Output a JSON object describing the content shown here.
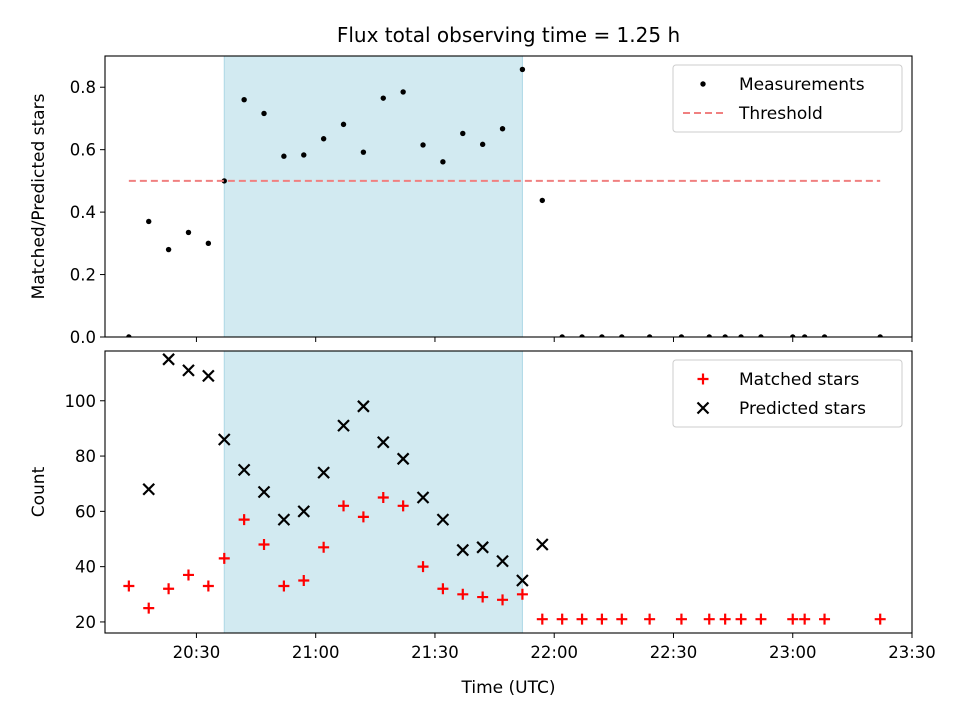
{
  "chart_data": [
    {
      "type": "scatter",
      "title": "Flux total observing time = 1.25 h",
      "xlabel": "",
      "ylabel": "Matched/Predicted stars",
      "x_axis": "time (UTC)",
      "xlim": [
        "20:07",
        "23:30"
      ],
      "ylim": [
        0,
        0.9
      ],
      "yticks": [
        "0.0",
        "0.2",
        "0.4",
        "0.6",
        "0.8"
      ],
      "highlight_span": {
        "start": "20:37",
        "end": "21:52",
        "color": "#add8e6"
      },
      "legend": {
        "placement": "top-right"
      },
      "series": [
        {
          "name": "Measurements",
          "marker": "dot",
          "color": "#000000",
          "points": [
            [
              "20:13",
              0.0
            ],
            [
              "20:18",
              0.37
            ],
            [
              "20:23",
              0.28
            ],
            [
              "20:28",
              0.335
            ],
            [
              "20:33",
              0.3
            ],
            [
              "20:37",
              0.5
            ],
            [
              "20:42",
              0.76
            ],
            [
              "20:47",
              0.716
            ],
            [
              "20:52",
              0.579
            ],
            [
              "20:57",
              0.583
            ],
            [
              "21:02",
              0.635
            ],
            [
              "21:07",
              0.681
            ],
            [
              "21:12",
              0.592
            ],
            [
              "21:17",
              0.765
            ],
            [
              "21:22",
              0.785
            ],
            [
              "21:27",
              0.615
            ],
            [
              "21:32",
              0.561
            ],
            [
              "21:37",
              0.652
            ],
            [
              "21:42",
              0.617
            ],
            [
              "21:47",
              0.667
            ],
            [
              "21:52",
              0.857
            ],
            [
              "21:57",
              0.4375
            ],
            [
              "22:02",
              0.0
            ],
            [
              "22:07",
              0.0
            ],
            [
              "22:12",
              0.0
            ],
            [
              "22:17",
              0.0
            ],
            [
              "22:24",
              0.0
            ],
            [
              "22:32",
              0.0
            ],
            [
              "22:39",
              0.0
            ],
            [
              "22:43",
              0.0
            ],
            [
              "22:47",
              0.0
            ],
            [
              "22:52",
              0.0
            ],
            [
              "23:00",
              0.0
            ],
            [
              "23:03",
              0.0
            ],
            [
              "23:08",
              0.0
            ],
            [
              "23:22",
              0.0
            ]
          ]
        },
        {
          "name": "Threshold",
          "line": "dashed",
          "color": "#f08080",
          "points": [
            [
              "20:13",
              0.5
            ],
            [
              "23:22",
              0.5
            ]
          ]
        }
      ]
    },
    {
      "type": "scatter",
      "title": "",
      "xlabel": "Time (UTC)",
      "ylabel": "Count",
      "xlim": [
        "20:07",
        "23:30"
      ],
      "ylim": [
        16,
        118
      ],
      "xticks": [
        "20:30",
        "21:00",
        "21:30",
        "22:00",
        "22:30",
        "23:00",
        "23:30"
      ],
      "yticks": [
        "20",
        "40",
        "60",
        "80",
        "100"
      ],
      "highlight_span": {
        "start": "20:37",
        "end": "21:52",
        "color": "#add8e6"
      },
      "legend": {
        "placement": "top-right"
      },
      "series": [
        {
          "name": "Matched stars",
          "marker": "plus",
          "color": "#ff0000",
          "points": [
            [
              "20:13",
              33
            ],
            [
              "20:18",
              25
            ],
            [
              "20:23",
              32
            ],
            [
              "20:28",
              37
            ],
            [
              "20:33",
              33
            ],
            [
              "20:37",
              43
            ],
            [
              "20:42",
              57
            ],
            [
              "20:47",
              48
            ],
            [
              "20:52",
              33
            ],
            [
              "20:57",
              35
            ],
            [
              "21:02",
              47
            ],
            [
              "21:07",
              62
            ],
            [
              "21:12",
              58
            ],
            [
              "21:17",
              65
            ],
            [
              "21:22",
              62
            ],
            [
              "21:27",
              40
            ],
            [
              "21:32",
              32
            ],
            [
              "21:37",
              30
            ],
            [
              "21:42",
              29
            ],
            [
              "21:47",
              28
            ],
            [
              "21:52",
              30
            ],
            [
              "21:57",
              21
            ],
            [
              "22:02",
              21
            ],
            [
              "22:07",
              21
            ],
            [
              "22:12",
              21
            ],
            [
              "22:17",
              21
            ],
            [
              "22:24",
              21
            ],
            [
              "22:32",
              21
            ],
            [
              "22:39",
              21
            ],
            [
              "22:43",
              21
            ],
            [
              "22:47",
              21
            ],
            [
              "22:52",
              21
            ],
            [
              "23:00",
              21
            ],
            [
              "23:03",
              21
            ],
            [
              "23:08",
              21
            ],
            [
              "23:22",
              21
            ]
          ]
        },
        {
          "name": "Predicted stars",
          "marker": "x",
          "color": "#000000",
          "points": [
            [
              "20:18",
              68
            ],
            [
              "20:23",
              115
            ],
            [
              "20:28",
              111
            ],
            [
              "20:33",
              109
            ],
            [
              "20:37",
              86
            ],
            [
              "20:42",
              75
            ],
            [
              "20:47",
              67
            ],
            [
              "20:52",
              57
            ],
            [
              "20:57",
              60
            ],
            [
              "21:02",
              74
            ],
            [
              "21:07",
              91
            ],
            [
              "21:12",
              98
            ],
            [
              "21:17",
              85
            ],
            [
              "21:22",
              79
            ],
            [
              "21:27",
              65
            ],
            [
              "21:32",
              57
            ],
            [
              "21:37",
              46
            ],
            [
              "21:42",
              47
            ],
            [
              "21:47",
              42
            ],
            [
              "21:52",
              35
            ],
            [
              "21:57",
              48
            ]
          ]
        }
      ]
    }
  ]
}
